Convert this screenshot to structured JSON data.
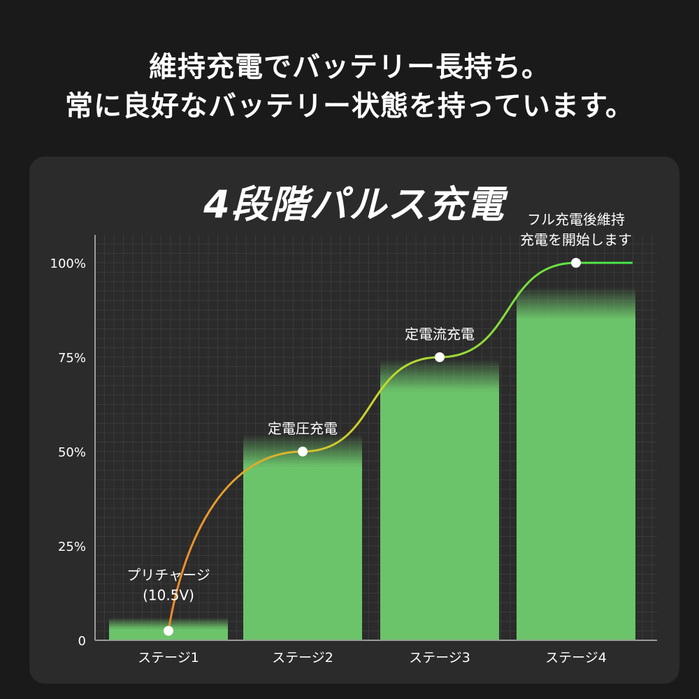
{
  "headline": {
    "line1": "維持充電でバッテリー長持ち。",
    "line2": "常に良好なバッテリー状態を持っています。"
  },
  "chart_data": {
    "type": "bar",
    "title": "4段階パルス充電",
    "categories": [
      "ステージ1",
      "ステージ2",
      "ステージ3",
      "ステージ4"
    ],
    "values": [
      3,
      46,
      66,
      85
    ],
    "ylim": [
      0,
      100
    ],
    "yticks": [
      0,
      25,
      50,
      75,
      100
    ],
    "ytick_labels": [
      "0",
      "25%",
      "50%",
      "75%",
      "100%"
    ],
    "grid": true,
    "line_points": [
      {
        "stage": 1,
        "value": 2.5,
        "label_lines": [
          "プリチャージ",
          "(10.5V)"
        ]
      },
      {
        "stage": 2,
        "value": 50,
        "label_lines": [
          "定電圧充電"
        ]
      },
      {
        "stage": 3,
        "value": 75,
        "label_lines": [
          "定電流充電"
        ]
      },
      {
        "stage": 4,
        "value": 100,
        "label_lines": [
          "フル充電後維持",
          "充電を開始します"
        ]
      }
    ],
    "colors": {
      "bar": "#6cc46a",
      "line_start": "#f08a2c",
      "line_mid": "#c8d62e",
      "line_end": "#3fe84a",
      "point": "#ffffff",
      "grid": "#3a3a3a",
      "axis": "#9a9a9a",
      "text": "#ffffff"
    }
  }
}
